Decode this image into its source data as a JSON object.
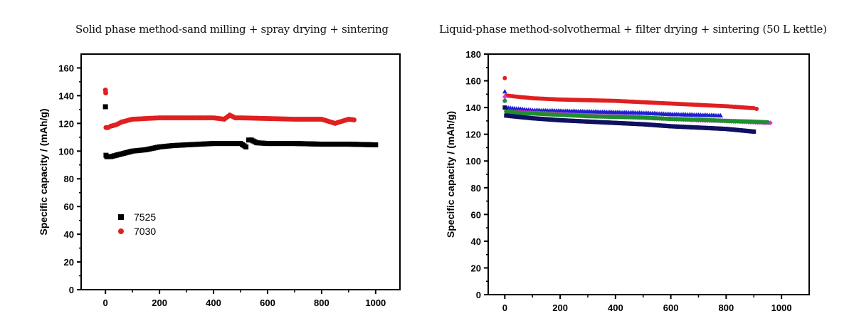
{
  "chart_data": [
    {
      "type": "scatter",
      "title": "Solid phase method-sand milling + spray drying + sintering",
      "xlabel": "",
      "ylabel": "Specific capacity / (mAh/g)",
      "xlim": [
        -90,
        1090
      ],
      "ylim": [
        0,
        170
      ],
      "xticks": [
        0,
        200,
        400,
        600,
        800,
        1000
      ],
      "yticks": [
        0,
        20,
        40,
        60,
        80,
        100,
        120,
        140,
        160
      ],
      "grid": false,
      "legend_position": "lower-left",
      "series": [
        {
          "name": "7525",
          "color": "#000000",
          "marker": "square",
          "x": [
            0,
            2,
            5,
            10,
            20,
            40,
            60,
            80,
            100,
            150,
            200,
            250,
            300,
            350,
            400,
            450,
            500,
            520,
            530,
            540,
            560,
            600,
            700,
            800,
            900,
            1000
          ],
          "y": [
            132,
            97,
            96,
            96,
            96,
            97,
            98,
            99,
            100,
            101,
            103,
            104,
            104.5,
            105,
            105.5,
            105.5,
            105.5,
            103,
            108,
            108,
            106,
            105.5,
            105.5,
            105,
            105,
            104.5
          ]
        },
        {
          "name": "7030",
          "color": "#e02020",
          "marker": "circle",
          "x": [
            0,
            1,
            2,
            5,
            10,
            20,
            40,
            60,
            80,
            100,
            150,
            200,
            250,
            300,
            350,
            400,
            440,
            460,
            480,
            500,
            600,
            700,
            800,
            850,
            900,
            920
          ],
          "y": [
            144,
            142,
            117,
            117,
            117,
            118,
            119,
            121,
            122,
            123,
            123.5,
            124,
            124,
            124,
            124,
            124,
            123,
            126,
            124,
            124,
            123.5,
            123,
            123,
            120,
            123,
            122.5
          ]
        }
      ]
    },
    {
      "type": "scatter",
      "title": "Liquid-phase method-solvothermal + filter drying + sintering (50 L kettle)",
      "xlabel": "",
      "ylabel": "Specific capacity / (mAh/g)",
      "xlim": [
        -60,
        1100
      ],
      "ylim": [
        0,
        180
      ],
      "xticks": [
        0,
        200,
        400,
        600,
        800,
        1000
      ],
      "yticks": [
        0,
        20,
        40,
        60,
        80,
        100,
        120,
        140,
        160,
        180
      ],
      "grid": false,
      "legend_position": "none",
      "series": [
        {
          "color": "#e02020",
          "marker": "circle",
          "x": [
            0,
            5,
            50,
            100,
            200,
            300,
            400,
            500,
            600,
            700,
            800,
            900,
            910
          ],
          "y": [
            162,
            149,
            148,
            147,
            146,
            145.5,
            145,
            144,
            143,
            142,
            141,
            139.5,
            139
          ]
        },
        {
          "color": "#2020d0",
          "marker": "triangle",
          "x": [
            0,
            5,
            50,
            100,
            200,
            300,
            400,
            500,
            600,
            700,
            780
          ],
          "y": [
            152,
            140,
            139,
            138,
            137.5,
            137,
            136.5,
            136,
            135,
            134.5,
            134
          ]
        },
        {
          "color": "#d040d0",
          "marker": "diamond",
          "x": [
            0,
            5,
            50,
            100,
            200,
            300,
            400,
            500,
            600,
            700,
            800,
            900,
            960
          ],
          "y": [
            148,
            137,
            136.5,
            136,
            135,
            134,
            133.5,
            132.5,
            131.5,
            130.5,
            130,
            129,
            128.5
          ]
        },
        {
          "color": "#1e8f2e",
          "marker": "circle",
          "x": [
            0,
            5,
            50,
            100,
            200,
            300,
            400,
            500,
            600,
            700,
            800,
            900,
            950
          ],
          "y": [
            145,
            137,
            136,
            135.5,
            134.5,
            133.5,
            133,
            132.5,
            131.5,
            131,
            130,
            129.5,
            129
          ]
        },
        {
          "color": "#101060",
          "marker": "square",
          "x": [
            0,
            5,
            50,
            100,
            200,
            300,
            400,
            500,
            600,
            700,
            800,
            900
          ],
          "y": [
            140,
            134,
            133,
            132,
            130.5,
            129.5,
            128.5,
            127.5,
            126,
            125,
            124,
            122
          ]
        }
      ]
    }
  ]
}
